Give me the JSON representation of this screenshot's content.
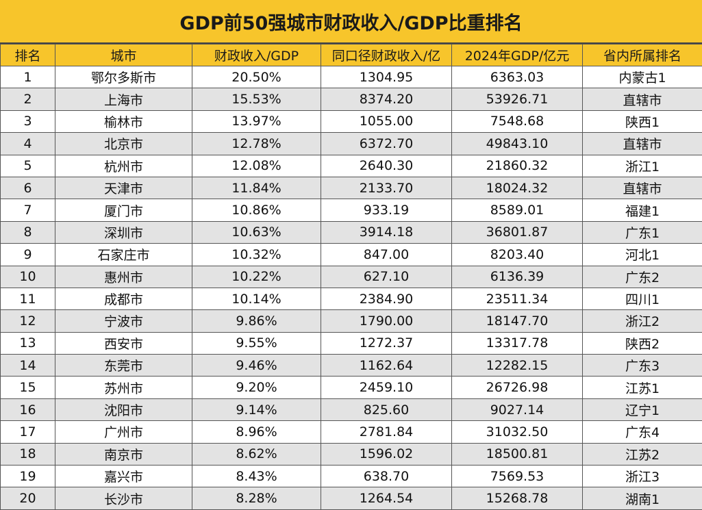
{
  "title": "GDP前50强城市财政收入/GDP比重排名",
  "headers": [
    "排名",
    "城市",
    "财政收入/GDP",
    "同口径财政收入/亿",
    "2024年GDP/亿元",
    "省内所属排名"
  ],
  "rows": [
    [
      "1",
      "鄂尔多斯市",
      "20.50%",
      "1304.95",
      "6363.03",
      "内蒙古1"
    ],
    [
      "2",
      "上海市",
      "15.53%",
      "8374.20",
      "53926.71",
      "直辖市"
    ],
    [
      "3",
      "榆林市",
      "13.97%",
      "1055.00",
      "7548.68",
      "陕西1"
    ],
    [
      "4",
      "北京市",
      "12.78%",
      "6372.70",
      "49843.10",
      "直辖市"
    ],
    [
      "5",
      "杭州市",
      "12.08%",
      "2640.30",
      "21860.32",
      "浙江1"
    ],
    [
      "6",
      "天津市",
      "11.84%",
      "2133.70",
      "18024.32",
      "直辖市"
    ],
    [
      "7",
      "厦门市",
      "10.86%",
      "933.19",
      "8589.01",
      "福建1"
    ],
    [
      "8",
      "深圳市",
      "10.63%",
      "3914.18",
      "36801.87",
      "广东1"
    ],
    [
      "9",
      "石家庄市",
      "10.32%",
      "847.00",
      "8203.40",
      "河北1"
    ],
    [
      "10",
      "惠州市",
      "10.22%",
      "627.10",
      "6136.39",
      "广东2"
    ],
    [
      "11",
      "成都市",
      "10.14%",
      "2384.90",
      "23511.34",
      "四川1"
    ],
    [
      "12",
      "宁波市",
      "9.86%",
      "1790.00",
      "18147.70",
      "浙江2"
    ],
    [
      "13",
      "西安市",
      "9.55%",
      "1272.37",
      "13317.78",
      "陕西2"
    ],
    [
      "14",
      "东莞市",
      "9.46%",
      "1162.64",
      "12282.15",
      "广东3"
    ],
    [
      "15",
      "苏州市",
      "9.20%",
      "2459.10",
      "26726.98",
      "江苏1"
    ],
    [
      "16",
      "沈阳市",
      "9.14%",
      "825.60",
      "9027.14",
      "辽宁1"
    ],
    [
      "17",
      "广州市",
      "8.96%",
      "2781.84",
      "31032.50",
      "广东4"
    ],
    [
      "18",
      "南京市",
      "8.62%",
      "1596.02",
      "18500.81",
      "江苏2"
    ],
    [
      "19",
      "嘉兴市",
      "8.43%",
      "638.70",
      "7569.53",
      "浙江3"
    ],
    [
      "20",
      "长沙市",
      "8.28%",
      "1264.54",
      "15268.78",
      "湖南1"
    ]
  ]
}
